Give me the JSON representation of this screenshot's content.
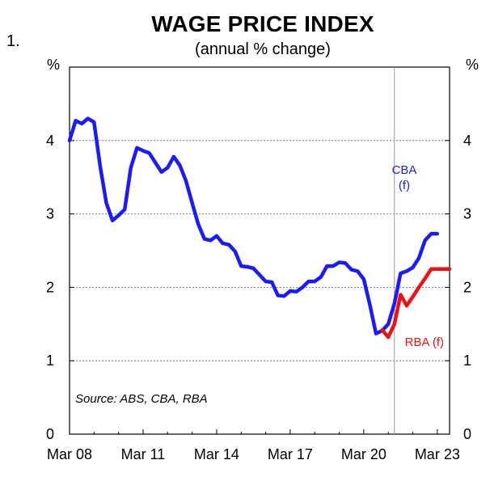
{
  "figure_number": "1.",
  "chart_data": {
    "type": "line",
    "title": "WAGE PRICE INDEX",
    "subtitle": "(annual % change)",
    "y_unit_left": "%",
    "y_unit_right": "%",
    "ylim": [
      0,
      5
    ],
    "yticks": [
      "0",
      "1",
      "2",
      "3",
      "4"
    ],
    "x_tick_labels": [
      "Mar 08",
      "Mar 11",
      "Mar 14",
      "Mar 17",
      "Mar 20",
      "Mar 23"
    ],
    "x_tick_values": [
      2008.0,
      2011.0,
      2014.0,
      2017.0,
      2020.0,
      2023.0
    ],
    "xlim": [
      2008.0,
      2023.5
    ],
    "gridlines": "horizontal-dotted",
    "forecast_start": 2021.25,
    "source": "Source: ABS, CBA, RBA",
    "series": [
      {
        "name": "CBA (f)",
        "color": "#1a1aff",
        "label_lines": [
          "CBA",
          "(f)"
        ],
        "x": [
          2008.0,
          2008.25,
          2008.5,
          2008.75,
          2009.0,
          2009.25,
          2009.5,
          2009.75,
          2010.0,
          2010.25,
          2010.5,
          2010.75,
          2011.0,
          2011.25,
          2011.5,
          2011.75,
          2012.0,
          2012.25,
          2012.5,
          2012.75,
          2013.0,
          2013.25,
          2013.5,
          2013.75,
          2014.0,
          2014.25,
          2014.5,
          2014.75,
          2015.0,
          2015.25,
          2015.5,
          2015.75,
          2016.0,
          2016.25,
          2016.5,
          2016.75,
          2017.0,
          2017.25,
          2017.5,
          2017.75,
          2018.0,
          2018.25,
          2018.5,
          2018.75,
          2019.0,
          2019.25,
          2019.5,
          2019.75,
          2020.0,
          2020.25,
          2020.5,
          2020.75,
          2021.0,
          2021.25,
          2021.5,
          2021.75,
          2022.0,
          2022.25,
          2022.5,
          2022.75,
          2023.0
        ],
        "values": [
          4.0,
          4.27,
          4.23,
          4.3,
          4.25,
          3.65,
          3.15,
          2.91,
          2.98,
          3.06,
          3.63,
          3.9,
          3.86,
          3.83,
          3.7,
          3.57,
          3.63,
          3.78,
          3.66,
          3.45,
          3.15,
          2.86,
          2.66,
          2.64,
          2.7,
          2.6,
          2.58,
          2.49,
          2.29,
          2.28,
          2.26,
          2.17,
          2.08,
          2.07,
          1.89,
          1.88,
          1.95,
          1.94,
          2.0,
          2.08,
          2.08,
          2.14,
          2.29,
          2.29,
          2.34,
          2.33,
          2.24,
          2.22,
          2.11,
          1.76,
          1.37,
          1.41,
          1.5,
          1.78,
          2.19,
          2.22,
          2.27,
          2.4,
          2.64,
          2.73,
          2.73
        ]
      },
      {
        "name": "RBA (f)",
        "color": "#ee1111",
        "label_lines": [
          "RBA (f)"
        ],
        "x": [
          2020.75,
          2021.0,
          2021.25,
          2021.5,
          2021.75,
          2022.0,
          2022.25,
          2022.5,
          2022.75,
          2023.0,
          2023.25,
          2023.5
        ],
        "values": [
          1.42,
          1.32,
          1.5,
          1.9,
          1.75,
          1.87,
          2.0,
          2.12,
          2.25,
          2.25,
          2.25,
          2.25
        ]
      }
    ]
  }
}
